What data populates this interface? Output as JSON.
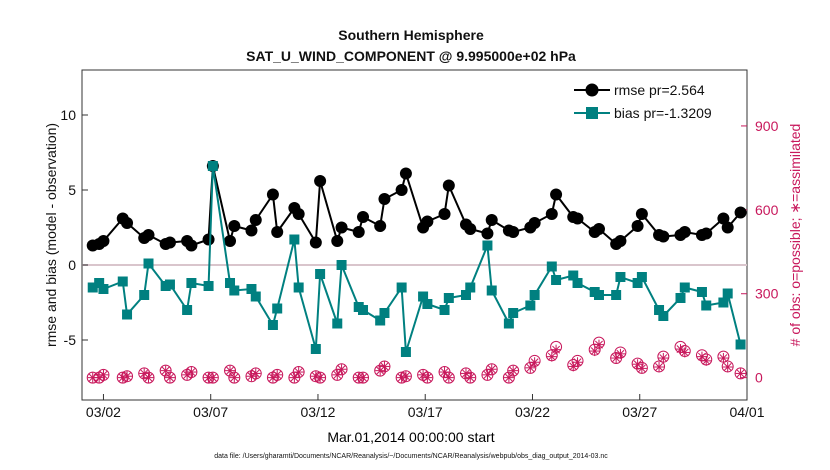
{
  "chart_data": {
    "type": "line",
    "title": "Southern Hemisphere",
    "subtitle": "SAT_U_WIND_COMPONENT @ 9.995000e+02 hPa",
    "xlabel": "Mar.01,2014 00:00:00 start",
    "ylabel_left": "rmse and bias (model - observation)",
    "ylabel_right": "# of obs: o=possible; ∗=assimilated",
    "xlim": [
      0.5,
      31.5
    ],
    "ylim_left": [
      -9,
      13
    ],
    "ylim_right": [
      -80,
      1100
    ],
    "x_ticks": [
      1.5,
      6.5,
      11.5,
      16.5,
      21.5,
      26.5,
      31.5
    ],
    "x_tick_labels": [
      "03/02",
      "03/07",
      "03/12",
      "03/17",
      "03/22",
      "03/27",
      "04/01"
    ],
    "y_left_ticks": [
      -5,
      0,
      5,
      10
    ],
    "y_left_tick_labels": [
      "-5",
      "0",
      "5",
      "10"
    ],
    "y_right_ticks": [
      0,
      300,
      600,
      900
    ],
    "y_right_tick_labels": [
      "0",
      "300",
      "600",
      "900"
    ],
    "legend": [
      "rmse pr=2.564",
      "bias pr=-1.3209"
    ],
    "legend_position": "top-right",
    "colors": {
      "rmse": "#000000",
      "bias": "#008080",
      "obs": "#c8185c",
      "zero_line": "#d9c5cc"
    },
    "x": [
      1.0,
      1.3,
      1.5,
      2.4,
      2.6,
      3.4,
      3.6,
      4.4,
      4.6,
      5.4,
      5.6,
      6.4,
      6.6,
      7.4,
      7.6,
      8.4,
      8.6,
      9.4,
      9.6,
      10.4,
      10.6,
      11.4,
      11.6,
      12.4,
      12.6,
      13.4,
      13.6,
      14.4,
      14.6,
      15.4,
      15.6,
      16.4,
      16.6,
      17.4,
      17.6,
      18.4,
      18.6,
      19.4,
      19.6,
      20.4,
      20.6,
      21.4,
      21.6,
      22.4,
      22.6,
      23.4,
      23.6,
      24.4,
      24.6,
      25.4,
      25.6,
      26.4,
      26.6,
      27.4,
      27.6,
      28.4,
      28.6,
      29.4,
      29.6,
      30.4,
      30.6,
      31.2
    ],
    "series": [
      {
        "name": "rmse",
        "values": [
          1.3,
          1.4,
          1.6,
          3.1,
          2.8,
          1.8,
          2.0,
          1.4,
          1.5,
          1.6,
          1.3,
          1.7,
          6.6,
          1.6,
          2.6,
          2.3,
          3.0,
          4.7,
          2.2,
          3.8,
          3.4,
          1.5,
          5.6,
          1.6,
          2.5,
          2.2,
          3.2,
          2.6,
          4.4,
          5.0,
          6.1,
          2.5,
          2.9,
          3.4,
          5.3,
          2.7,
          2.4,
          2.1,
          3.0,
          2.3,
          2.2,
          2.5,
          2.8,
          3.4,
          4.7,
          3.2,
          3.1,
          2.2,
          2.4,
          1.4,
          1.6,
          2.6,
          3.4,
          2.0,
          1.9,
          2.0,
          2.2,
          2.0,
          2.1,
          3.1,
          2.5,
          3.5
        ]
      },
      {
        "name": "bias",
        "values": [
          -1.5,
          -1.2,
          -1.6,
          -1.1,
          -3.3,
          -2.0,
          0.1,
          -1.4,
          -1.3,
          -3.0,
          -1.2,
          -1.4,
          6.6,
          -1.2,
          -1.7,
          -1.6,
          -2.1,
          -4.0,
          -2.9,
          1.7,
          -1.5,
          -5.6,
          -0.6,
          -3.9,
          0.0,
          -2.8,
          -3.0,
          -3.7,
          -3.2,
          -1.5,
          -5.8,
          -2.1,
          -2.6,
          -3.0,
          -2.2,
          -2.0,
          -1.5,
          1.3,
          -1.7,
          -3.9,
          -3.2,
          -2.7,
          -2.0,
          -0.1,
          -1.0,
          -0.7,
          -1.2,
          -1.8,
          -2.0,
          -2.0,
          -0.8,
          -1.2,
          -0.8,
          -3.0,
          -3.4,
          -2.2,
          -1.5,
          -1.8,
          -2.7,
          -2.5,
          -1.9,
          -5.3
        ]
      },
      {
        "name": "obs_possible",
        "values": [
          0,
          0,
          10,
          0,
          5,
          15,
          0,
          25,
          0,
          10,
          20,
          0,
          0,
          25,
          0,
          5,
          15,
          0,
          10,
          0,
          20,
          5,
          0,
          10,
          30,
          0,
          0,
          25,
          40,
          0,
          5,
          10,
          0,
          20,
          0,
          15,
          0,
          10,
          30,
          0,
          25,
          35,
          60,
          80,
          110,
          45,
          60,
          100,
          125,
          70,
          90,
          50,
          35,
          40,
          75,
          110,
          95,
          80,
          65,
          75,
          40,
          15
        ]
      },
      {
        "name": "obs_assimilated",
        "values": [
          0,
          0,
          10,
          0,
          5,
          15,
          0,
          25,
          0,
          10,
          20,
          0,
          0,
          25,
          0,
          5,
          15,
          0,
          10,
          0,
          20,
          5,
          0,
          10,
          30,
          0,
          0,
          25,
          40,
          0,
          5,
          10,
          0,
          20,
          0,
          15,
          0,
          10,
          30,
          0,
          25,
          35,
          55,
          75,
          100,
          40,
          55,
          95,
          118,
          70,
          85,
          48,
          33,
          38,
          70,
          102,
          90,
          75,
          60,
          70,
          38,
          15
        ]
      }
    ],
    "obs_labels": {
      "possible": "o",
      "assimilated": "∗"
    }
  },
  "footer": "data file: /Users/gharamti/Documents/NCAR/Reanalysis/~/Documents/NCAR/Reanalysis/webpub/obs_diag_output_2014-03.nc"
}
